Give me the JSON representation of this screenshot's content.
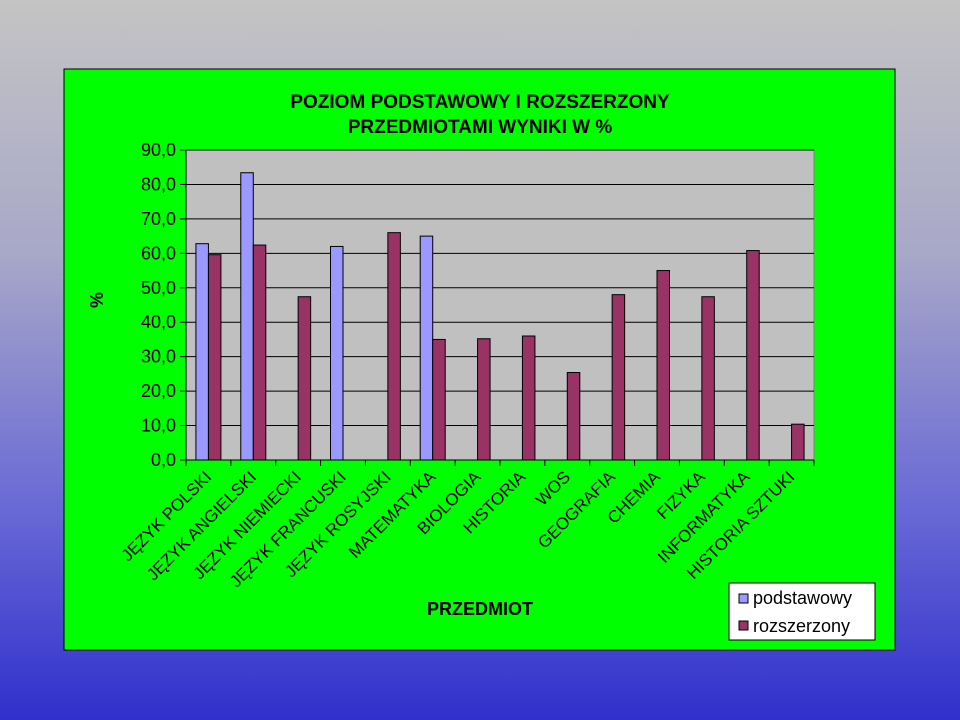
{
  "colors": {
    "chart_area": "#00ff00",
    "plot_area": "#c0c0c0",
    "podstawowy": "#9999ff",
    "rozszerzony": "#993366",
    "gridline": "#000000"
  },
  "chart_data": {
    "type": "bar",
    "title_line1": "POZIOM PODSTAWOWY I ROZSZERZONY",
    "title_line2": "PRZEDMIOTAMI WYNIKI W %",
    "xlabel": "PRZEDMIOT",
    "ylabel": "%",
    "ylim": [
      0,
      90
    ],
    "ytick_step": 10,
    "yticks": [
      "0,0",
      "10,0",
      "20,0",
      "30,0",
      "40,0",
      "50,0",
      "60,0",
      "70,0",
      "80,0",
      "90,0"
    ],
    "grid": true,
    "legend_position": "bottom-right",
    "categories": [
      "JĘZYK POLSKI",
      "JĘZYK ANGIELSKI",
      "JĘZYK NIEMIECKI",
      "JĘZYK FRANCUSKI",
      "JĘZYK ROSYJSKI",
      "MATEMATYKA",
      "BIOLOGIA",
      "HISTORIA",
      "WOS",
      "GEOGRAFIA",
      "CHEMIA",
      "FIZYKA",
      "INFORMATYKA",
      "HISTORIA SZTUKI"
    ],
    "series": [
      {
        "name": "podstawowy",
        "values": [
          62.8,
          83.4,
          null,
          62.0,
          null,
          65.0,
          null,
          null,
          null,
          null,
          null,
          null,
          null,
          null
        ]
      },
      {
        "name": "rozszerzony",
        "values": [
          59.6,
          62.4,
          47.4,
          null,
          66.0,
          35.0,
          35.2,
          36.0,
          25.4,
          48.0,
          55.0,
          47.4,
          60.8,
          10.4
        ]
      }
    ]
  }
}
